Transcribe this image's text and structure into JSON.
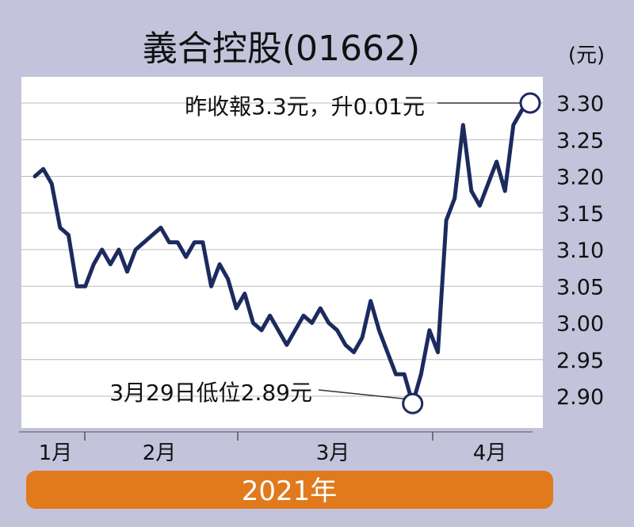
{
  "chart_data": {
    "type": "line",
    "title": "義合控股(01662)",
    "unit": "(元)",
    "ylim": [
      2.87,
      3.32
    ],
    "yticks": [
      "3.30",
      "3.25",
      "3.20",
      "3.15",
      "3.10",
      "3.05",
      "3.00",
      "2.95",
      "2.90"
    ],
    "ytick_values": [
      3.3,
      3.25,
      3.2,
      3.15,
      3.1,
      3.05,
      3.0,
      2.95,
      2.9
    ],
    "months": [
      "1月",
      "2月",
      "3月",
      "4月"
    ],
    "year_label": "2021年",
    "grid": true,
    "series": [
      {
        "values": [
          3.2,
          3.21,
          3.19,
          3.13,
          3.12,
          3.05,
          3.05,
          3.08,
          3.1,
          3.08,
          3.1,
          3.07,
          3.1,
          3.11,
          3.12,
          3.13,
          3.11,
          3.11,
          3.09,
          3.11,
          3.11,
          3.05,
          3.08,
          3.06,
          3.02,
          3.04,
          3.0,
          2.99,
          3.01,
          2.99,
          2.97,
          2.99,
          3.01,
          3.0,
          3.02,
          3.0,
          2.99,
          2.97,
          2.96,
          2.98,
          3.03,
          2.99,
          2.96,
          2.93,
          2.93,
          2.89,
          2.93,
          2.99,
          2.96,
          3.14,
          3.17,
          3.27,
          3.18,
          3.16,
          3.19,
          3.22,
          3.18,
          3.27,
          3.29,
          3.3
        ],
        "color": "#1c2a5e"
      }
    ],
    "annotations": [
      {
        "text": "昨收報3.3元，升0.01元",
        "point_index": 59,
        "value": 3.3
      },
      {
        "text": "3月29日低位2.89元",
        "point_index": 45,
        "value": 2.89
      }
    ],
    "colors": {
      "background": "#c3c3dc",
      "plot_background": "#ffffff",
      "line": "#1c2a5e",
      "grid": "#b9b9b9",
      "year_band": "#e07a1c"
    }
  }
}
